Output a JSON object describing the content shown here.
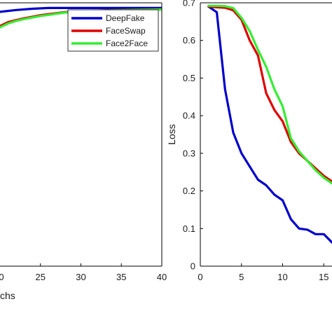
{
  "chart_data": [
    {
      "type": "line",
      "xlim": [
        20,
        40
      ],
      "ylim": [
        0,
        1.02
      ],
      "xticks": [
        "25",
        "30",
        "35",
        "40"
      ],
      "xtick_partial": "0",
      "xlabel_partial": "chs",
      "grid": false,
      "legend_position": "top-right",
      "series": [
        {
          "name": "DeepFake",
          "color": "#0000cc",
          "x": [
            20,
            22,
            24,
            26,
            28,
            30,
            32,
            34,
            36,
            38,
            40
          ],
          "y": [
            0.985,
            0.992,
            0.997,
            1.0,
            1.0,
            1.0,
            1.0,
            1.0,
            1.0,
            1.0,
            1.0
          ]
        },
        {
          "name": "FaceSwap",
          "color": "#e00000",
          "x": [
            20,
            21,
            22,
            23,
            24,
            25,
            26,
            27,
            28,
            30,
            32,
            34,
            36,
            38,
            40
          ],
          "y": [
            0.93,
            0.945,
            0.953,
            0.96,
            0.966,
            0.972,
            0.976,
            0.98,
            0.984,
            0.988,
            0.99,
            0.992,
            0.993,
            0.994,
            0.995
          ]
        },
        {
          "name": "Face2Face",
          "color": "#33ee33",
          "x": [
            20,
            21,
            22,
            23,
            24,
            25,
            26,
            27,
            28,
            30,
            32,
            34,
            36,
            38,
            40
          ],
          "y": [
            0.925,
            0.94,
            0.95,
            0.957,
            0.963,
            0.969,
            0.973,
            0.978,
            0.982,
            0.986,
            0.989,
            0.991,
            0.992,
            0.993,
            0.994
          ]
        }
      ]
    },
    {
      "type": "line",
      "xlim": [
        0,
        16
      ],
      "ylim": [
        0,
        0.7
      ],
      "xticks": [
        "0",
        "5",
        "10",
        "15"
      ],
      "yticks": [
        "0",
        "0.1",
        "0.2",
        "0.3",
        "0.4",
        "0.5",
        "0.6",
        "0.7"
      ],
      "ylabel": "Loss",
      "grid": false,
      "series": [
        {
          "name": "DeepFake",
          "color": "#0000cc",
          "x": [
            1,
            2,
            3,
            4,
            5,
            6,
            7,
            8,
            9,
            10,
            11,
            12,
            13,
            14,
            15,
            16
          ],
          "y": [
            0.69,
            0.675,
            0.47,
            0.355,
            0.3,
            0.265,
            0.23,
            0.215,
            0.19,
            0.175,
            0.125,
            0.1,
            0.097,
            0.085,
            0.085,
            0.063
          ]
        },
        {
          "name": "FaceSwap",
          "color": "#e00000",
          "x": [
            1,
            2,
            3,
            4,
            5,
            6,
            7,
            8,
            9,
            10,
            11,
            12,
            13,
            14,
            15,
            16
          ],
          "y": [
            0.69,
            0.688,
            0.687,
            0.68,
            0.655,
            0.6,
            0.56,
            0.46,
            0.415,
            0.385,
            0.33,
            0.3,
            0.28,
            0.26,
            0.24,
            0.225
          ]
        },
        {
          "name": "Face2Face",
          "color": "#33ee33",
          "x": [
            1,
            2,
            3,
            4,
            5,
            6,
            7,
            8,
            9,
            10,
            11,
            12,
            13,
            14,
            15,
            16
          ],
          "y": [
            0.692,
            0.692,
            0.691,
            0.686,
            0.66,
            0.625,
            0.575,
            0.53,
            0.47,
            0.425,
            0.34,
            0.305,
            0.28,
            0.255,
            0.235,
            0.22
          ]
        }
      ]
    }
  ]
}
